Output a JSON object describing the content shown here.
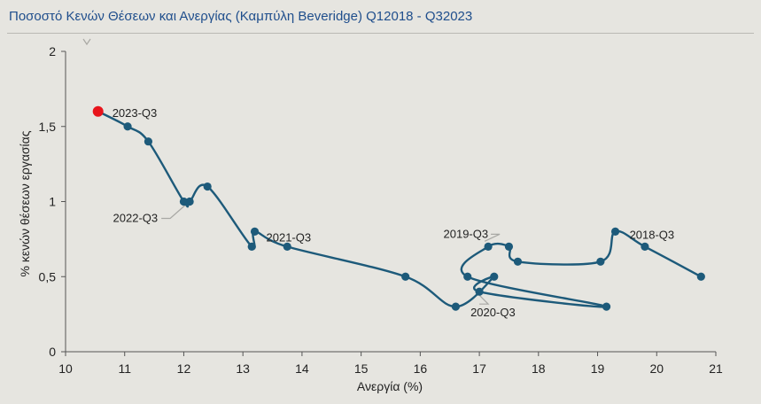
{
  "title": "Ποσοστό Κενών Θέσεων και Ανεργίας (Καμπύλη Beveridge) Q12018 - Q32023",
  "colors": {
    "line": "#1d5a7a",
    "highlight": "#e8141b",
    "title": "#1f4e8c"
  },
  "chart_data": {
    "type": "line",
    "title": "Ποσοστό Κενών Θέσεων και Ανεργίας (Καμπύλη Beveridge) Q12018 - Q32023",
    "xlabel": "Ανεργία (%)",
    "ylabel": "% κενών θέσεων εργασίας",
    "xlim": [
      10,
      21
    ],
    "ylim": [
      0,
      2
    ],
    "xticks": [
      "10",
      "11",
      "12",
      "13",
      "14",
      "15",
      "16",
      "17",
      "18",
      "19",
      "20",
      "21"
    ],
    "yticks": [
      "0",
      "0,5",
      "1",
      "1,5",
      "2"
    ],
    "grid": false,
    "points": [
      {
        "x": 20.75,
        "y": 0.5
      },
      {
        "x": 19.8,
        "y": 0.7
      },
      {
        "x": 19.3,
        "y": 0.8
      },
      {
        "x": 19.05,
        "y": 0.6
      },
      {
        "x": 17.65,
        "y": 0.6
      },
      {
        "x": 17.5,
        "y": 0.7
      },
      {
        "x": 17.15,
        "y": 0.7
      },
      {
        "x": 16.8,
        "y": 0.5
      },
      {
        "x": 19.15,
        "y": 0.3
      },
      {
        "x": 17.0,
        "y": 0.4
      },
      {
        "x": 17.25,
        "y": 0.5
      },
      {
        "x": 16.6,
        "y": 0.3
      },
      {
        "x": 15.75,
        "y": 0.5
      },
      {
        "x": 13.75,
        "y": 0.7
      },
      {
        "x": 13.2,
        "y": 0.8
      },
      {
        "x": 13.15,
        "y": 0.7
      },
      {
        "x": 12.4,
        "y": 1.1
      },
      {
        "x": 12.1,
        "y": 1.0
      },
      {
        "x": 12.0,
        "y": 1.0
      },
      {
        "x": 11.4,
        "y": 1.4
      },
      {
        "x": 11.05,
        "y": 1.5
      },
      {
        "x": 10.55,
        "y": 1.6
      }
    ],
    "highlight_index": 21,
    "annotations": [
      {
        "label": "2023-Q3",
        "point": 21
      },
      {
        "label": "2022-Q3",
        "point": 17
      },
      {
        "label": "2021-Q3",
        "point": 14
      },
      {
        "label": "2020-Q3",
        "point": 9
      },
      {
        "label": "2019-Q3",
        "point": 6
      },
      {
        "label": "2018-Q3",
        "point": 2
      }
    ]
  }
}
